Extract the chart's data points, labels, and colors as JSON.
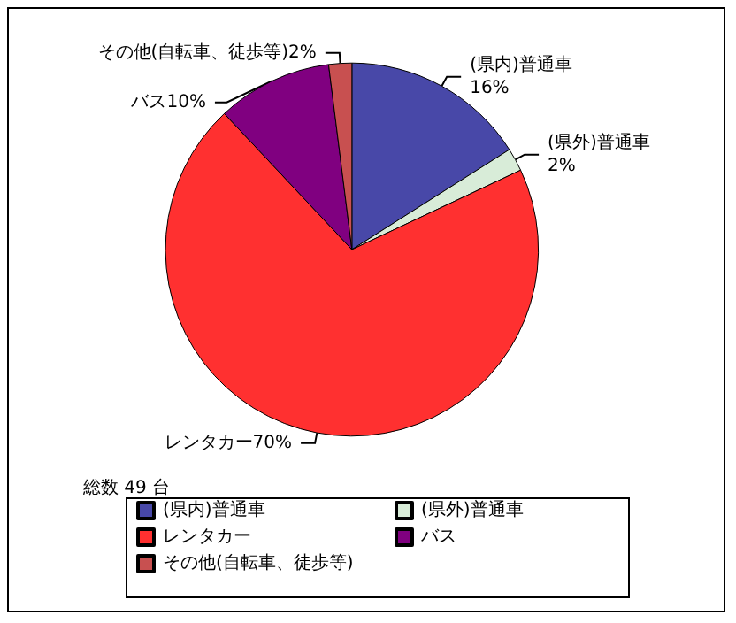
{
  "chart_data": {
    "type": "pie",
    "categories": [
      "(県内)普通車",
      "(県外)普通車",
      "レンタカー",
      "バス",
      "その他(自転車、徒歩等)"
    ],
    "values": [
      16,
      2,
      70,
      10,
      2
    ],
    "colors": [
      "#4848a8",
      "#d8ecd8",
      "#ff3030",
      "#800080",
      "#c85050"
    ],
    "annotations": [
      "総数 49 台"
    ],
    "value_labels": [
      "16%",
      "2%",
      "70%",
      "10%",
      "2%"
    ],
    "legend": "bottom"
  }
}
